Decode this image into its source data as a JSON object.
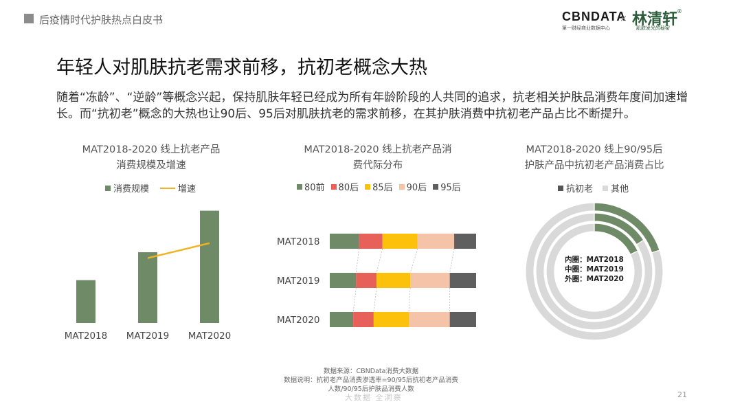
{
  "header": {
    "section": "后疫情时代护肤热点白皮书"
  },
  "logos": {
    "cbn": "CBNDATA",
    "cbn_sub": "第一财经商业数据中心",
    "x": "×",
    "brand": "林清轩",
    "brand_reg": "®",
    "brand_sub": "肌肤发光的秘密"
  },
  "slide": {
    "title": "年轻人对肌肤抗老需求前移，抗初老概念大热",
    "paragraph": "随着“冻龄”、“逆龄”等概念兴起，保持肌肤年轻已经成为所有年龄阶段的人共同的追求，抗老相关护肤品消费年度间加速增长。而“抗初老”概念的大热也让90后、95后对肌肤抗老的需求前移，在其护肤消费中抗初老产品占比不断提升。"
  },
  "chart_data": [
    {
      "type": "bar",
      "title_line1": "MAT2018-2020 线上抗老产品",
      "title_line2": "消费规模及增速",
      "categories": [
        "MAT2018",
        "MAT2019",
        "MAT2020"
      ],
      "series": [
        {
          "name": "消费规模",
          "type": "bar",
          "color": "#6e8a66",
          "values": [
            66,
            109,
            173
          ]
        },
        {
          "name": "增速",
          "type": "line",
          "color": "#f0b323",
          "values": [
            null,
            100,
            123
          ]
        }
      ],
      "ylim": [
        0,
        180
      ],
      "y2lim": [
        0,
        180
      ],
      "grid": false,
      "legend": "top"
    },
    {
      "type": "bar",
      "stacked": "100%",
      "orientation": "horizontal",
      "title_line1": "MAT2018-2020 线上抗老产品消",
      "title_line2": "费代际分布",
      "categories": [
        "MAT2018",
        "MAT2019",
        "MAT2020"
      ],
      "series": [
        {
          "name": "80前",
          "color": "#6e8a66",
          "values": [
            20,
            18,
            16
          ]
        },
        {
          "name": "80后",
          "color": "#e8605a",
          "values": [
            16,
            14,
            14
          ]
        },
        {
          "name": "85后",
          "color": "#fcc20b",
          "values": [
            24,
            23,
            24
          ]
        },
        {
          "name": "90后",
          "color": "#f5c3a8",
          "values": [
            25,
            27,
            28
          ]
        },
        {
          "name": "95后",
          "color": "#5f5f5f",
          "values": [
            15,
            18,
            18
          ]
        }
      ],
      "xlim": [
        0,
        100
      ],
      "legend": "top"
    },
    {
      "type": "pie",
      "donut": true,
      "title_line1": "MAT2018-2020 线上90/95后",
      "title_line2": "护肤产品中抗初老产品消费占比",
      "rings": [
        {
          "label": "MAT2018",
          "position": "inner",
          "values": [
            18,
            82
          ]
        },
        {
          "label": "MAT2019",
          "position": "middle",
          "values": [
            16,
            84
          ]
        },
        {
          "label": "MAT2020",
          "position": "outer",
          "values": [
            20,
            80
          ]
        }
      ],
      "categories": [
        "抗初老",
        "其他"
      ],
      "colors": [
        "#6e8a66",
        "#d9d9d9"
      ],
      "center_labels": [
        "内圈：MAT2018",
        "中圈：MAT2019",
        "外圈：MAT2020"
      ],
      "legend": "top"
    }
  ],
  "footer": {
    "source": "数据来源：CBNData消费大数据",
    "note_line1": "数据说明：抗初老产品消费渗透率=90/95后抗初老产品消费",
    "note_line2": "人数/90/95后护肤品消费人数",
    "watermark": "大数据  全洞察",
    "page": "21"
  }
}
